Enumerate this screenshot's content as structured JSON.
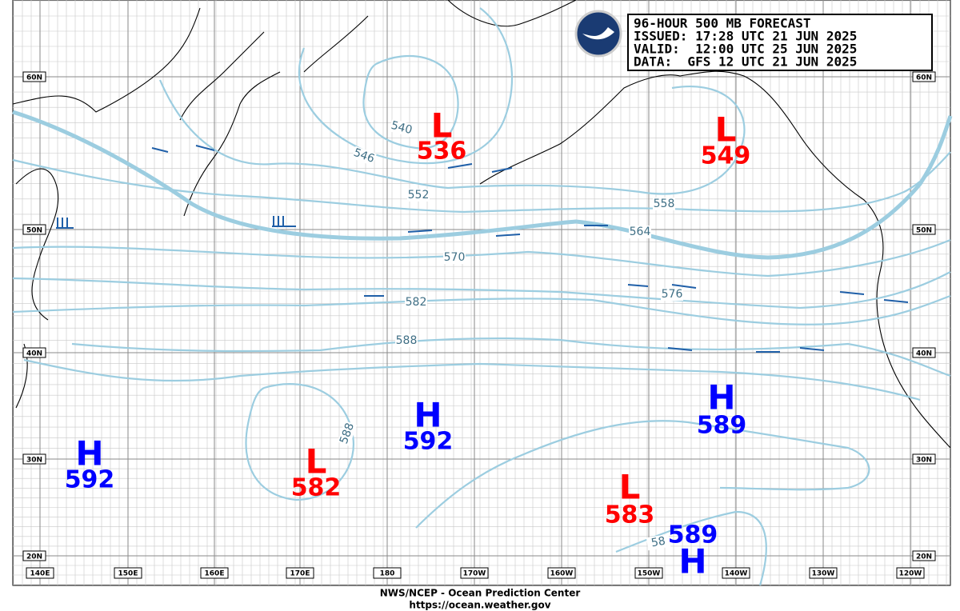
{
  "header": {
    "lines": [
      "96-HOUR 500 MB FORECAST",
      "ISSUED: 17:28 UTC 21 JUN 2025",
      "VALID:  12:00 UTC 25 JUN 2025",
      "DATA:  GFS 12 UTC 21 JUN 2025"
    ]
  },
  "lat_labels": [
    "60N",
    "50N",
    "40N",
    "30N",
    "20N"
  ],
  "lon_labels": [
    "140E",
    "150E",
    "160E",
    "170E",
    "180",
    "170W",
    "160W",
    "150W",
    "140W",
    "130W",
    "120W"
  ],
  "contour_labels": [
    540,
    546,
    552,
    558,
    564,
    570,
    576,
    582,
    588,
    588,
    58
  ],
  "centers": [
    {
      "symbol": "L",
      "value": 536
    },
    {
      "symbol": "L",
      "value": 549
    },
    {
      "symbol": "H",
      "value": 592
    },
    {
      "symbol": "L",
      "value": 582
    },
    {
      "symbol": "H",
      "value": 589
    },
    {
      "symbol": "L",
      "value": 583
    },
    {
      "symbol": "H",
      "value": 589
    },
    {
      "symbol": "H",
      "value": 592
    }
  ],
  "footer": {
    "line1": "NWS/NCEP - Ocean Prediction Center",
    "line2": "https://ocean.weather.gov"
  }
}
